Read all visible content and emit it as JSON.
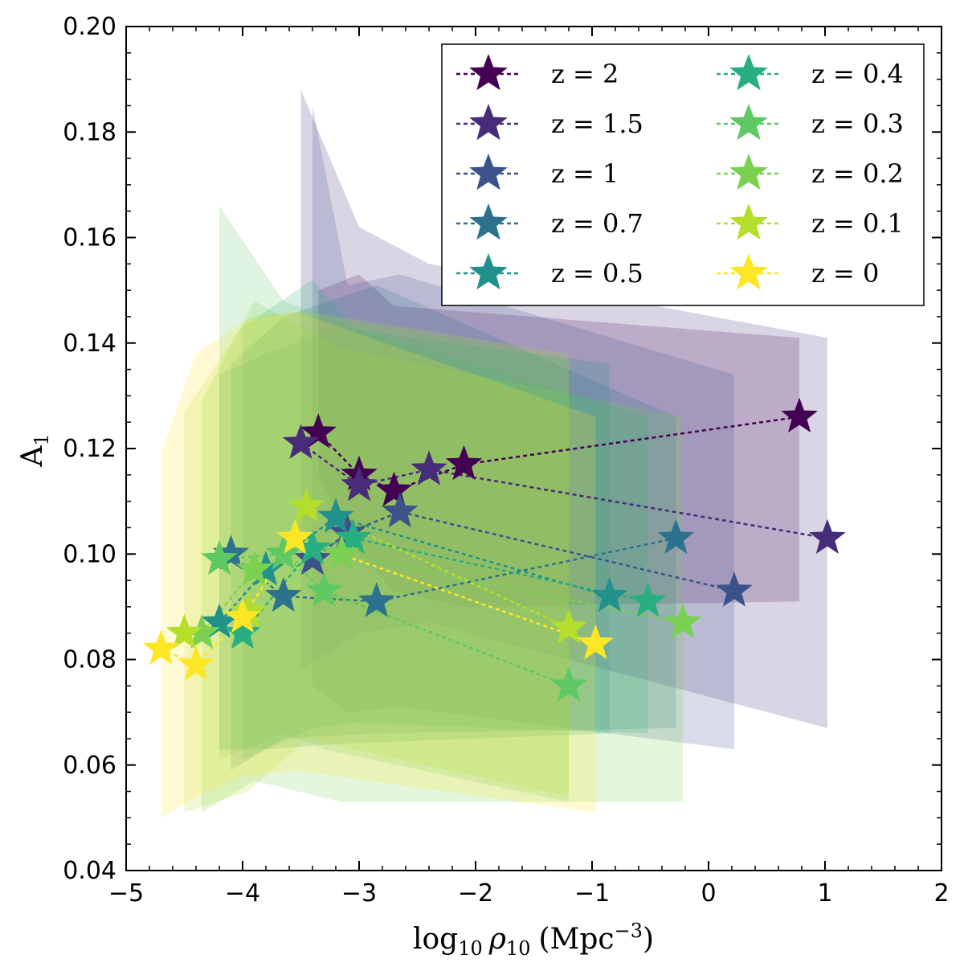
{
  "chart_data": {
    "type": "scatter",
    "title": "",
    "xlabel": {
      "prefix": "log",
      "prefix_sub": "10",
      "var": "ρ",
      "var_sub": "10",
      "unit": "(Mpc",
      "unit_sup": "−3",
      "close": ")"
    },
    "ylabel": {
      "main": "A",
      "sub": "1"
    },
    "xlim": [
      -5,
      2
    ],
    "ylim": [
      0.04,
      0.2
    ],
    "xticks": [
      -5,
      -4,
      -3,
      -2,
      -1,
      0,
      1,
      2
    ],
    "xtick_labels": [
      "−5",
      "−4",
      "−3",
      "−2",
      "−1",
      "0",
      "1",
      "2"
    ],
    "yticks": [
      0.04,
      0.06,
      0.08,
      0.1,
      0.12,
      0.14,
      0.16,
      0.18,
      0.2
    ],
    "ytick_labels": [
      "0.04",
      "0.06",
      "0.08",
      "0.10",
      "0.12",
      "0.14",
      "0.16",
      "0.18",
      "0.20"
    ],
    "grid": false,
    "legend_position": "top-right",
    "series": [
      {
        "name": "z = 2",
        "color": "#440154",
        "x": [
          -3.35,
          -3.0,
          -2.7,
          -2.1,
          0.78
        ],
        "y": [
          0.123,
          0.115,
          0.112,
          0.117,
          0.126
        ],
        "band_lower": [
          0.115,
          0.1,
          0.093,
          0.09,
          0.091
        ],
        "band_upper": [
          0.15,
          0.153,
          0.147,
          0.146,
          0.141
        ]
      },
      {
        "name": "z = 1.5",
        "color": "#472c7a",
        "x": [
          -3.5,
          -3.0,
          -2.4,
          1.02
        ],
        "y": [
          0.121,
          0.113,
          0.116,
          0.103
        ],
        "band_lower": [
          0.078,
          0.085,
          0.087,
          0.067
        ],
        "band_upper": [
          0.188,
          0.162,
          0.155,
          0.141
        ]
      },
      {
        "name": "z = 1",
        "color": "#3b528b",
        "x": [
          -3.4,
          -3.1,
          -2.65,
          0.22
        ],
        "y": [
          0.099,
          0.104,
          0.108,
          0.093
        ],
        "band_lower": [
          0.075,
          0.07,
          0.071,
          0.063
        ],
        "band_upper": [
          0.185,
          0.151,
          0.153,
          0.134
        ]
      },
      {
        "name": "z = 0.7",
        "color": "#2c728e",
        "x": [
          -4.1,
          -3.65,
          -2.85,
          -0.28
        ],
        "y": [
          0.1,
          0.092,
          0.091,
          0.103
        ],
        "band_lower": [
          0.059,
          0.065,
          0.066,
          0.067
        ],
        "band_upper": [
          0.136,
          0.145,
          0.151,
          0.126
        ]
      },
      {
        "name": "z = 0.5",
        "color": "#21918c",
        "x": [
          -4.2,
          -3.8,
          -3.2,
          -0.85
        ],
        "y": [
          0.087,
          0.097,
          0.107,
          0.092
        ],
        "band_lower": [
          0.063,
          0.063,
          0.064,
          0.066
        ],
        "band_upper": [
          0.134,
          0.138,
          0.143,
          0.136
        ]
      },
      {
        "name": "z = 0.4",
        "color": "#28ae80",
        "x": [
          -4.0,
          -3.4,
          -3.05,
          -0.52
        ],
        "y": [
          0.085,
          0.101,
          0.103,
          0.091
        ],
        "band_lower": [
          0.061,
          0.067,
          0.068,
          0.066
        ],
        "band_upper": [
          0.143,
          0.152,
          0.143,
          0.126
        ]
      },
      {
        "name": "z = 0.3",
        "color": "#5ec962",
        "x": [
          -4.2,
          -3.65,
          -3.3,
          -1.2
        ],
        "y": [
          0.099,
          0.1,
          0.093,
          0.075
        ],
        "band_lower": [
          0.061,
          0.066,
          0.063,
          0.053
        ],
        "band_upper": [
          0.166,
          0.148,
          0.145,
          0.137
        ]
      },
      {
        "name": "z = 0.2",
        "color": "#7ad151",
        "x": [
          -4.35,
          -3.9,
          -3.15,
          -0.22
        ],
        "y": [
          0.085,
          0.097,
          0.1,
          0.087
        ],
        "band_lower": [
          0.051,
          0.057,
          0.053,
          0.053
        ],
        "band_upper": [
          0.129,
          0.148,
          0.139,
          0.126
        ]
      },
      {
        "name": "z = 0.1",
        "color": "#b5de2b",
        "x": [
          -4.5,
          -3.95,
          -3.45,
          -1.2
        ],
        "y": [
          0.085,
          0.089,
          0.109,
          0.086
        ],
        "band_lower": [
          0.051,
          0.055,
          0.065,
          0.054
        ],
        "band_upper": [
          0.127,
          0.145,
          0.146,
          0.138
        ]
      },
      {
        "name": "z = 0",
        "color": "#fde725",
        "x": [
          -4.7,
          -4.4,
          -4.0,
          -3.55,
          -0.97
        ],
        "y": [
          0.082,
          0.079,
          0.088,
          0.103,
          0.083
        ],
        "band_lower": [
          0.05,
          0.054,
          0.058,
          0.059,
          0.051
        ],
        "band_upper": [
          0.119,
          0.138,
          0.144,
          0.146,
          0.126
        ]
      }
    ]
  }
}
